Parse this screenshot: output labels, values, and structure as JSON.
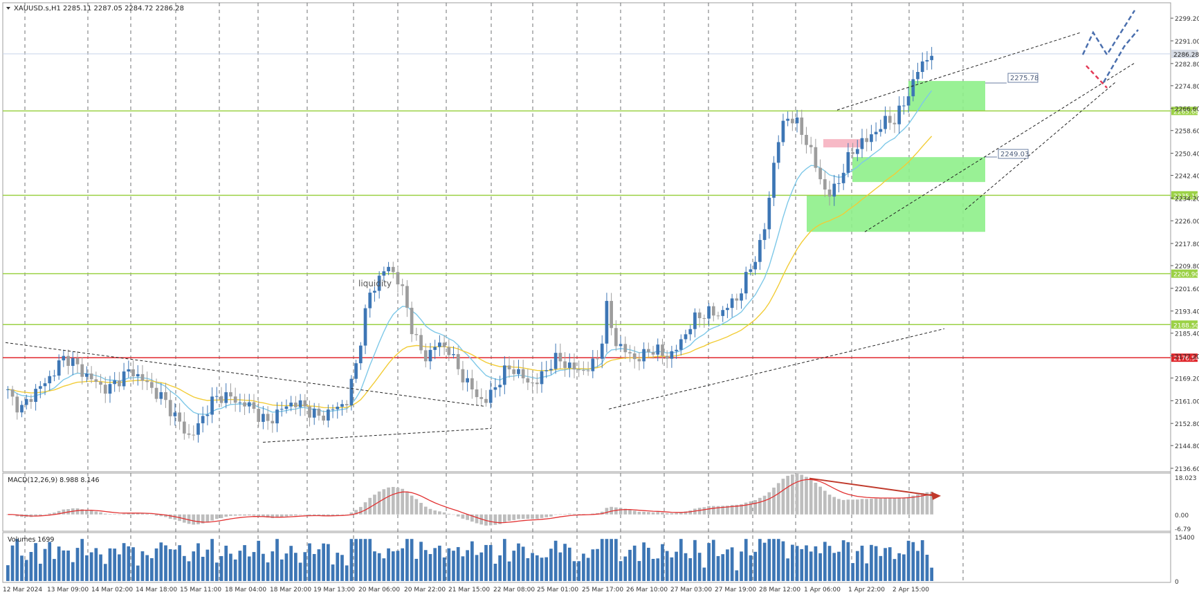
{
  "header": {
    "symbol_line": "XAUUSD.s,H1  2285.11 2287.05 2284.72 2286.28"
  },
  "annotations": {
    "liquidity_text": "liquidity",
    "box_label_1": "2275.78",
    "box_label_2": "2249.03"
  },
  "colors": {
    "bull_candle": "#3d76b5",
    "bear_candle": "#9d9d9d",
    "level_green": "#9bd145",
    "level_red": "#e0262b",
    "zone_fill": "#8ef08a",
    "supply_fill": "#f7b9c6",
    "ema_fast": "#7ec8e8",
    "ema_slow": "#f2cc36",
    "macd_signal": "#e23131",
    "projection": "#4a6fae",
    "projection_down": "#e33a57",
    "divergence_arrow": "#c0392b"
  },
  "chart_data": [
    {
      "type": "candlestick",
      "title": "XAUUSD.s,H1",
      "last_price": "2286.28",
      "ylim": [
        2136.6,
        2303.5
      ],
      "y_ticks": [
        "2299.20",
        "2291.00",
        "2282.80",
        "2274.80",
        "2266.60",
        "2258.60",
        "2250.40",
        "2242.40",
        "2234.20",
        "2226.00",
        "2217.80",
        "2209.80",
        "2201.60",
        "2193.40",
        "2185.40",
        "2177.20",
        "2169.20",
        "2161.00",
        "2152.80",
        "2144.80",
        "2136.60"
      ],
      "x_ticks": [
        "12 Mar 2024",
        "13 Mar 09:00",
        "14 Mar 02:00",
        "14 Mar 18:00",
        "15 Mar 11:00",
        "18 Mar 04:00",
        "18 Mar 20:00",
        "19 Mar 13:00",
        "20 Mar 06:00",
        "20 Mar 22:00",
        "21 Mar 15:00",
        "22 Mar 08:00",
        "25 Mar 01:00",
        "25 Mar 17:00",
        "26 Mar 10:00",
        "27 Mar 03:00",
        "27 Mar 19:00",
        "28 Mar 12:00",
        "1 Apr 06:00",
        "1 Apr 22:00",
        "2 Apr 15:00"
      ],
      "horizontal_levels": [
        {
          "label": "2265.68",
          "value": 2265.68,
          "color": "green"
        },
        {
          "label": "2235.19",
          "value": 2235.19,
          "color": "green"
        },
        {
          "label": "2206.90",
          "value": 2206.9,
          "color": "green"
        },
        {
          "label": "2188.50",
          "value": 2188.5,
          "color": "green"
        },
        {
          "label": "2176.54",
          "value": 2176.54,
          "color": "red"
        }
      ],
      "close_path": [
        2164,
        2160,
        2158,
        2162,
        2165,
        2167,
        2170,
        2174,
        2177,
        2175,
        2172,
        2170,
        2168,
        2166,
        2165,
        2168,
        2170,
        2172,
        2170,
        2168,
        2165,
        2163,
        2160,
        2156,
        2152,
        2148,
        2150,
        2155,
        2160,
        2162,
        2163,
        2162,
        2160,
        2160,
        2158,
        2155,
        2153,
        2156,
        2158,
        2160,
        2160,
        2159,
        2157,
        2155,
        2156,
        2158,
        2159,
        2161,
        2171,
        2185,
        2199,
        2203,
        2208,
        2209,
        2205,
        2198,
        2187,
        2180,
        2176,
        2181,
        2181,
        2180,
        2174,
        2170,
        2166,
        2163,
        2160,
        2164,
        2168,
        2172,
        2173,
        2170,
        2168,
        2167,
        2170,
        2174,
        2176,
        2175,
        2173,
        2172,
        2172,
        2174,
        2178,
        2195,
        2183,
        2180,
        2178,
        2176,
        2177,
        2180,
        2179,
        2177,
        2178,
        2181,
        2186,
        2190,
        2192,
        2193,
        2192,
        2193,
        2196,
        2198,
        2203,
        2210,
        2215,
        2225,
        2245,
        2258,
        2264,
        2262,
        2258,
        2253,
        2245,
        2238,
        2235,
        2240,
        2246,
        2251,
        2254,
        2255,
        2258,
        2260,
        2263,
        2262,
        2268,
        2273,
        2280,
        2284,
        2286.3
      ],
      "volume_ymax": 15400,
      "volume_ticks": [
        "15400",
        "0"
      ]
    },
    {
      "type": "bar",
      "title": "MACD(12,26,9) 8.988 8.146",
      "ylim": [
        -6.79,
        18.023
      ],
      "y_ticks": [
        "18.023",
        "0.00",
        "-6.79"
      ],
      "signal_value": 8.146,
      "histogram_value": 8.988
    },
    {
      "type": "bar",
      "title": "Volumes 1699",
      "ylim": [
        0,
        15400
      ],
      "y_ticks": [
        "15400",
        "0"
      ]
    }
  ]
}
